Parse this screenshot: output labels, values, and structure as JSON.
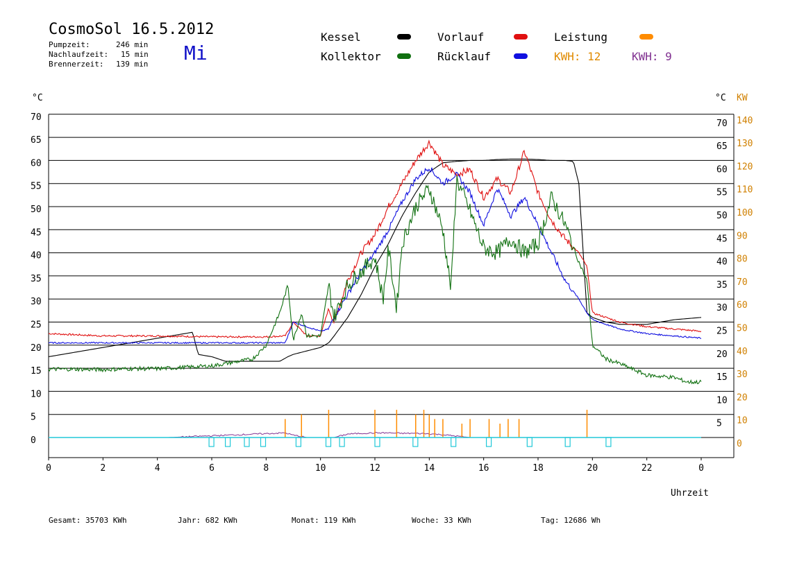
{
  "header": {
    "title": "CosmoSol 16.5.2012",
    "day": "Mi",
    "stats": [
      {
        "label": "Pumpzeit:",
        "value": "246 min"
      },
      {
        "label": "Nachlaufzeit:",
        "value": "15 min"
      },
      {
        "label": "Brennerzeit:",
        "value": "139 min"
      }
    ]
  },
  "legend": {
    "items": [
      {
        "label": "Kessel",
        "color": "#000000"
      },
      {
        "label": "Vorlauf",
        "color": "#e01010"
      },
      {
        "label": "Leistung",
        "color": "#ff8c00"
      },
      {
        "label": "Kollektor",
        "color": "#107010"
      },
      {
        "label": "Rücklauf",
        "color": "#1010e0"
      }
    ],
    "kwh_orange": "KWH: 12",
    "kwh_purple": "KWH: 9",
    "kwh_orange_color": "#e08a00",
    "kwh_purple_color": "#803090"
  },
  "footer": {
    "gesamt": "Gesamt:  35703 KWh",
    "jahr": "Jahr:    682 KWh",
    "monat": "Monat:   119 KWh",
    "woche": "Woche:     33 KWh",
    "tag": "Tag:  12686 Wh"
  },
  "chart_data": {
    "type": "line",
    "xlabel": "Uhrzeit",
    "left_unit": "°C",
    "right_unit_c": "°C",
    "right_unit_kw": "KW",
    "x_ticks": [
      "0",
      "2",
      "4",
      "6",
      "8",
      "10",
      "12",
      "14",
      "16",
      "18",
      "20",
      "22",
      "0"
    ],
    "left_ticks": [
      "70",
      "65",
      "60",
      "55",
      "50",
      "45",
      "40",
      "35",
      "30",
      "25",
      "20",
      "15",
      "10",
      "5",
      "0"
    ],
    "right_ticks_c": [
      "70",
      "65",
      "60",
      "55",
      "50",
      "45",
      "40",
      "35",
      "30",
      "25",
      "20",
      "15",
      "10",
      "5"
    ],
    "right_ticks_kw": [
      "140",
      "130",
      "120",
      "110",
      "100",
      "90",
      "80",
      "70",
      "60",
      "50",
      "40",
      "30",
      "20",
      "10",
      "0"
    ],
    "xlim": [
      0,
      24
    ],
    "ylim": [
      0,
      70
    ],
    "series": [
      {
        "name": "Kessel",
        "color": "#000000",
        "x": [
          0,
          1,
          2,
          3,
          4,
          5,
          5.3,
          5.5,
          6,
          6.5,
          7,
          8,
          8.5,
          8.8,
          9,
          10,
          10.3,
          10.5,
          11,
          11.5,
          12,
          12.5,
          13,
          13.5,
          14,
          14.5,
          15,
          15.5,
          16,
          16.5,
          17,
          17.5,
          18,
          18.5,
          19,
          19.3,
          19.5,
          19.8,
          20,
          20.5,
          21,
          22,
          23,
          24
        ],
        "y": [
          17.5,
          18.5,
          19.5,
          20.5,
          21.5,
          22.5,
          22.8,
          18,
          17.5,
          16.5,
          16.5,
          16.5,
          16.5,
          17.5,
          18,
          19.5,
          20.5,
          22,
          26,
          31,
          37,
          42,
          48,
          53,
          57.5,
          59.5,
          59.8,
          60,
          60,
          60.2,
          60.3,
          60.3,
          60.2,
          60,
          60,
          59.8,
          55,
          27,
          26,
          25,
          24.5,
          24.5,
          25.5,
          26
        ]
      },
      {
        "name": "Vorlauf",
        "color": "#e01010",
        "x": [
          0,
          2,
          4,
          6,
          8,
          8.7,
          9,
          9.5,
          10,
          10.3,
          10.5,
          11,
          11.5,
          12,
          12.5,
          13,
          13.5,
          14,
          14.5,
          15,
          15.5,
          16,
          16.5,
          17,
          17.5,
          18,
          18.5,
          19,
          19.5,
          19.8,
          20,
          20.5,
          21,
          22,
          23,
          24
        ],
        "y": [
          22.5,
          22,
          22,
          21.8,
          21.8,
          22,
          25,
          22,
          22,
          28,
          25,
          34,
          40,
          44,
          50,
          55,
          60,
          64,
          59,
          57,
          58,
          52,
          56,
          53,
          62,
          53,
          47,
          43,
          40,
          37,
          27,
          26,
          25,
          24,
          23.5,
          23
        ],
        "noise": 1.5
      },
      {
        "name": "Rücklauf",
        "color": "#1010e0",
        "x": [
          0,
          2,
          4,
          6,
          8,
          8.7,
          9,
          9.5,
          10,
          10.3,
          10.5,
          11,
          11.5,
          12,
          12.5,
          13,
          13.5,
          14,
          14.5,
          15,
          15.5,
          16,
          16.5,
          17,
          17.5,
          18,
          18.5,
          19,
          19.5,
          19.8,
          20,
          20.5,
          21,
          22,
          23,
          24
        ],
        "y": [
          20.5,
          20.5,
          20.5,
          20.5,
          20.5,
          20.5,
          25,
          24,
          23,
          23.5,
          26,
          31,
          36,
          40,
          45,
          51,
          56,
          58.5,
          55,
          57,
          53,
          46,
          54,
          48,
          52,
          46,
          40,
          34,
          30,
          27,
          25.5,
          24.5,
          23.5,
          22.5,
          22,
          21.5
        ],
        "noise": 1.2
      },
      {
        "name": "Kollektor",
        "color": "#107010",
        "x": [
          0,
          1,
          2,
          3,
          4,
          5,
          6,
          7,
          7.5,
          8,
          8.5,
          8.8,
          9,
          9.3,
          9.5,
          10,
          10.3,
          10.5,
          11,
          11.5,
          12,
          12.3,
          12.5,
          12.8,
          13,
          13.5,
          14,
          14.5,
          14.8,
          15,
          15.5,
          16,
          16.5,
          17,
          17.5,
          18,
          18.5,
          19,
          19.5,
          19.8,
          20,
          20.5,
          21,
          22,
          23,
          23.5,
          24
        ],
        "y": [
          14.8,
          14.8,
          14.7,
          14.9,
          14.9,
          15.2,
          15.5,
          16.5,
          17,
          20,
          27,
          33,
          21,
          27,
          22,
          22,
          33,
          26,
          33,
          36,
          39,
          30,
          41,
          28,
          42,
          50,
          54,
          45,
          32,
          56,
          49,
          41,
          40,
          43,
          40,
          42,
          52,
          46,
          38,
          34,
          20,
          17,
          16,
          13.5,
          13,
          12,
          12
        ],
        "noise": 3.5
      }
    ],
    "power_spikes": {
      "name": "Leistung",
      "color": "#ff8c00",
      "x": [
        8.7,
        9.3,
        10.3,
        12,
        12.8,
        13.5,
        13.8,
        14,
        14.2,
        14.5,
        15.2,
        15.5,
        16.2,
        16.6,
        16.9,
        17.3,
        19.8
      ],
      "kw": [
        5,
        6,
        7,
        7,
        7,
        6,
        7,
        6,
        5,
        5,
        4,
        5,
        5,
        4,
        5,
        5,
        7
      ]
    },
    "power_plateau": {
      "name": "KWH: 9",
      "color": "#803090",
      "x": [
        4.4,
        8.7,
        9,
        9.5,
        10.5,
        11,
        11.5,
        12,
        12.5,
        13,
        13.5,
        14,
        14.5,
        15,
        15.5,
        16,
        16.5,
        17,
        17.5,
        23.8
      ],
      "kw": [
        0,
        2,
        1,
        0,
        0,
        1.5,
        1.8,
        2,
        2,
        1.8,
        1.8,
        1.6,
        1.2,
        0.6,
        0,
        0,
        0,
        0,
        0,
        0
      ]
    },
    "pump_pulses": {
      "color": "#20c8d8",
      "x": [
        5.9,
        6.5,
        7.2,
        7.8,
        9.1,
        10.2,
        10.7,
        12,
        13.4,
        14.8,
        16.1,
        17.6,
        19,
        20.5
      ]
    }
  }
}
